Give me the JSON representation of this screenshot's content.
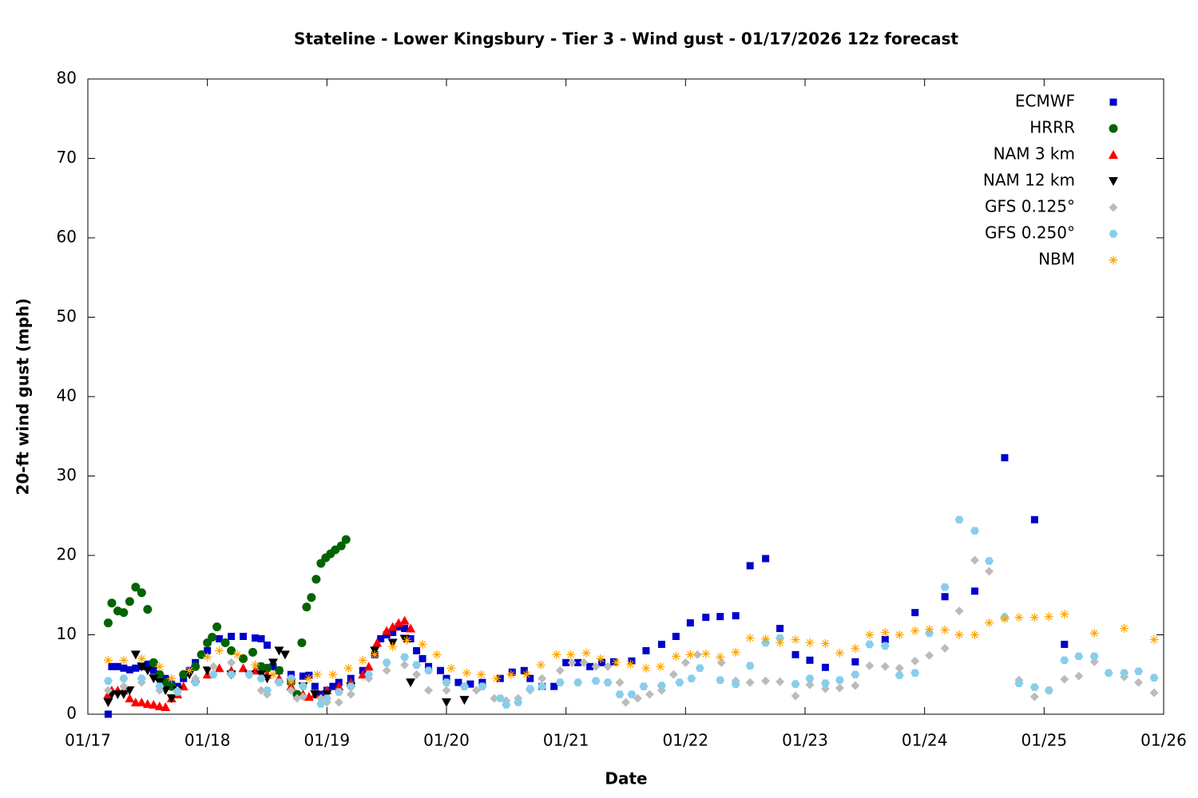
{
  "chart_data": {
    "type": "scatter",
    "title": "Stateline - Lower Kingsbury - Tier 3 - Wind gust - 01/17/2026 12z forecast",
    "xlabel": "Date",
    "ylabel": "20-ft wind gust (mph)",
    "xlim": [
      0,
      9
    ],
    "ylim": [
      0,
      80
    ],
    "xticks": [
      {
        "value": 0,
        "label": "01/17"
      },
      {
        "value": 1,
        "label": "01/18"
      },
      {
        "value": 2,
        "label": "01/19"
      },
      {
        "value": 3,
        "label": "01/20"
      },
      {
        "value": 4,
        "label": "01/21"
      },
      {
        "value": 5,
        "label": "01/22"
      },
      {
        "value": 6,
        "label": "01/23"
      },
      {
        "value": 7,
        "label": "01/24"
      },
      {
        "value": 8,
        "label": "01/25"
      },
      {
        "value": 9,
        "label": "01/26"
      }
    ],
    "yticks": [
      0,
      10,
      20,
      30,
      40,
      50,
      60,
      70,
      80
    ],
    "legend": "top-right",
    "series": [
      {
        "name": "ECMWF",
        "color": "#0000cc",
        "marker": "square",
        "x": [
          0.17,
          0.2,
          0.25,
          0.3,
          0.35,
          0.4,
          0.45,
          0.5,
          0.55,
          0.6,
          0.65,
          0.7,
          0.75,
          0.8,
          0.85,
          0.9,
          1.0,
          1.1,
          1.2,
          1.3,
          1.4,
          1.45,
          1.5,
          1.55,
          1.6,
          1.7,
          1.8,
          1.85,
          1.9,
          1.95,
          2.0,
          2.05,
          2.1,
          2.2,
          2.3,
          2.4,
          2.45,
          2.5,
          2.55,
          2.6,
          2.65,
          2.7,
          2.75,
          2.8,
          2.85,
          2.95,
          3.0,
          3.1,
          3.2,
          3.3,
          3.45,
          3.55,
          3.65,
          3.7,
          3.8,
          3.9,
          4.0,
          4.1,
          4.2,
          4.3,
          4.4,
          4.55,
          4.67,
          4.8,
          4.92,
          5.04,
          5.17,
          5.29,
          5.42,
          5.54,
          5.67,
          5.79,
          5.92,
          6.04,
          6.17,
          6.42,
          6.67,
          6.92,
          7.17,
          7.42,
          7.67,
          7.92,
          8.17
        ],
        "values": [
          0,
          6,
          6,
          5.8,
          5.6,
          5.8,
          6,
          6.3,
          5.5,
          4.8,
          4.5,
          3.8,
          3.5,
          4.5,
          5.5,
          6.5,
          8,
          9.5,
          9.8,
          9.8,
          9.6,
          9.5,
          8.7,
          6,
          5.5,
          5,
          4.8,
          4.9,
          3.5,
          2.5,
          3,
          3.5,
          4,
          4.5,
          5.5,
          7.5,
          9.5,
          10,
          10.3,
          11,
          10.8,
          9.5,
          8,
          7,
          6,
          5.5,
          4.5,
          4,
          3.8,
          4,
          4.5,
          5.3,
          5.5,
          4.5,
          3.5,
          3.5,
          6.5,
          6.5,
          6,
          6.5,
          6.6,
          6.7,
          8,
          8.8,
          9.8,
          11.5,
          12.2,
          12.3,
          12.4,
          18.7,
          19.6,
          10.8,
          7.5,
          6.8,
          5.9,
          6.6,
          9.4,
          12.8,
          14.8,
          15.5,
          32.3,
          24.5,
          8.8
        ]
      },
      {
        "name": "HRRR",
        "color": "#006400",
        "marker": "circle",
        "x": [
          0.17,
          0.2,
          0.25,
          0.3,
          0.35,
          0.4,
          0.45,
          0.5,
          0.55,
          0.6,
          0.65,
          0.7,
          0.8,
          0.9,
          0.95,
          1.0,
          1.04,
          1.08,
          1.15,
          1.2,
          1.3,
          1.38,
          1.45,
          1.5,
          1.6,
          1.7,
          1.75,
          1.79,
          1.83,
          1.87,
          1.91,
          1.95,
          1.99,
          2.03,
          2.07,
          2.12,
          2.16
        ],
        "values": [
          11.5,
          14,
          13,
          12.8,
          14.2,
          16,
          15.3,
          13.2,
          6.5,
          5,
          4,
          3.5,
          5,
          6,
          7.5,
          9,
          9.7,
          11,
          9,
          8,
          7,
          7.8,
          6,
          5.8,
          5.5,
          4,
          2.5,
          9,
          13.5,
          14.7,
          17,
          19,
          19.7,
          20.2,
          20.7,
          21.2,
          22
        ]
      },
      {
        "name": "NAM 3 km",
        "color": "#ff0000",
        "marker": "triangle-up",
        "x": [
          0.17,
          0.2,
          0.25,
          0.3,
          0.35,
          0.4,
          0.45,
          0.5,
          0.55,
          0.6,
          0.65,
          0.7,
          0.75,
          0.8,
          0.9,
          1.0,
          1.1,
          1.2,
          1.3,
          1.4,
          1.5,
          1.6,
          1.7,
          1.8,
          1.85,
          1.9,
          2.0,
          2.1,
          2.2,
          2.3,
          2.35,
          2.42,
          2.5,
          2.55,
          2.6,
          2.65,
          2.7
        ],
        "values": [
          2.5,
          3,
          3,
          3,
          2,
          1.5,
          1.5,
          1.3,
          1.2,
          1,
          0.9,
          2,
          2.5,
          3.5,
          4.5,
          5,
          5.8,
          5.5,
          5.8,
          5.5,
          5,
          4.5,
          3.5,
          2.5,
          2.2,
          2.5,
          3,
          3.5,
          4,
          5,
          6,
          9,
          10.5,
          11,
          11.5,
          11.8,
          10.8
        ]
      },
      {
        "name": "NAM 12 km",
        "color": "#000000",
        "marker": "triangle-down",
        "x": [
          0.17,
          0.2,
          0.25,
          0.3,
          0.35,
          0.4,
          0.45,
          0.5,
          0.55,
          0.6,
          0.65,
          0.7,
          0.75,
          0.85,
          1.0,
          1.2,
          1.35,
          1.45,
          1.5,
          1.55,
          1.6,
          1.65,
          1.7,
          1.8,
          1.9,
          2.0,
          2.2,
          2.4,
          2.55,
          2.65,
          2.7,
          3.0,
          3.15
        ],
        "values": [
          1.5,
          2.5,
          2.5,
          2.5,
          3,
          7.5,
          6,
          5.5,
          4.5,
          4,
          3,
          2,
          3,
          5,
          5.5,
          5,
          5,
          5,
          4.5,
          6.5,
          8,
          7.5,
          4,
          3.5,
          2.5,
          2.5,
          3.5,
          8,
          9,
          9.5,
          4,
          1.5,
          1.8
        ]
      },
      {
        "name": "GFS 0.125°",
        "color": "#bbbbbb",
        "marker": "diamond",
        "x": [
          0.17,
          0.3,
          0.45,
          0.6,
          0.75,
          0.9,
          1.05,
          1.2,
          1.35,
          1.45,
          1.5,
          1.6,
          1.7,
          1.75,
          1.8,
          1.95,
          2.0,
          2.1,
          2.2,
          2.35,
          2.5,
          2.65,
          2.75,
          2.85,
          3.0,
          3.15,
          3.25,
          3.4,
          3.5,
          3.6,
          3.7,
          3.8,
          3.95,
          4.05,
          4.15,
          4.25,
          4.35,
          4.45,
          4.5,
          4.6,
          4.7,
          4.8,
          4.9,
          5.0,
          5.1,
          5.3,
          5.42,
          5.54,
          5.67,
          5.79,
          5.92,
          6.04,
          6.17,
          6.29,
          6.42,
          6.54,
          6.67,
          6.79,
          6.92,
          7.04,
          7.17,
          7.29,
          7.42,
          7.54,
          7.67,
          7.79,
          7.92,
          8.04,
          8.17,
          8.29,
          8.42,
          8.54,
          8.67,
          8.79,
          8.92
        ],
        "values": [
          3,
          3.5,
          4,
          3,
          3,
          4.5,
          6,
          6.5,
          5,
          3,
          2.5,
          4,
          3,
          2,
          2.2,
          2,
          1.5,
          1.5,
          2.5,
          4.5,
          5.5,
          6.2,
          5,
          3,
          3,
          3.5,
          3,
          2,
          1.7,
          2,
          3,
          4.5,
          5.5,
          6.5,
          6.5,
          6,
          6,
          4,
          1.5,
          2,
          2.5,
          3,
          5,
          6.5,
          7.5,
          6.5,
          4.2,
          4,
          4.2,
          4.1,
          2.3,
          3.7,
          3.2,
          3.3,
          3.6,
          6.1,
          6,
          5.8,
          6.7,
          7.4,
          8.3,
          13,
          19.4,
          18,
          12.3,
          4.3,
          2.2,
          3,
          4.4,
          4.8,
          6.6,
          5.2,
          4.7,
          4,
          2.7
        ]
      },
      {
        "name": "GFS 0.250°",
        "color": "#87ceeb",
        "marker": "hexagon",
        "x": [
          0.17,
          0.3,
          0.45,
          0.6,
          0.75,
          0.9,
          1.05,
          1.2,
          1.35,
          1.45,
          1.5,
          1.6,
          1.7,
          1.8,
          1.95,
          2.0,
          2.1,
          2.2,
          2.35,
          2.5,
          2.65,
          2.75,
          2.85,
          3.0,
          3.15,
          3.3,
          3.45,
          3.5,
          3.6,
          3.7,
          3.8,
          3.95,
          4.1,
          4.25,
          4.35,
          4.45,
          4.55,
          4.65,
          4.8,
          4.95,
          5.05,
          5.12,
          5.29,
          5.42,
          5.54,
          5.67,
          5.79,
          5.92,
          6.04,
          6.17,
          6.29,
          6.42,
          6.54,
          6.67,
          6.79,
          6.92,
          7.04,
          7.17,
          7.29,
          7.42,
          7.54,
          7.67,
          7.79,
          7.92,
          8.04,
          8.17,
          8.29,
          8.42,
          8.54,
          8.67,
          8.79,
          8.92
        ],
        "values": [
          4.2,
          4.5,
          4.5,
          3.5,
          2.8,
          4,
          5,
          5,
          5,
          4.5,
          3,
          4,
          4.5,
          3.5,
          1.3,
          2,
          2.8,
          3.5,
          5,
          6.5,
          7.2,
          6.2,
          5.5,
          4,
          3.5,
          3.5,
          2,
          1.2,
          1.5,
          3.2,
          3.5,
          4,
          4,
          4.2,
          4,
          2.5,
          2.5,
          3.5,
          3.6,
          4,
          4.5,
          5.8,
          4.3,
          3.8,
          6.1,
          9,
          9.6,
          3.8,
          4.5,
          3.9,
          4.3,
          5,
          8.8,
          8.6,
          4.9,
          5.2,
          10.2,
          16,
          24.5,
          23.1,
          19.3,
          12.2,
          3.9,
          3.4,
          3,
          6.8,
          7.3,
          7.3,
          5.2,
          5.2,
          5.4,
          4.6
        ]
      },
      {
        "name": "NBM",
        "color": "#ffa500",
        "marker": "asterisk",
        "x": [
          0.17,
          0.3,
          0.45,
          0.6,
          0.7,
          0.85,
          1.0,
          1.1,
          1.25,
          1.4,
          1.55,
          1.7,
          1.85,
          1.92,
          2.05,
          2.18,
          2.3,
          2.4,
          2.55,
          2.67,
          2.8,
          2.92,
          3.04,
          3.17,
          3.29,
          3.42,
          3.54,
          3.67,
          3.79,
          3.92,
          4.04,
          4.17,
          4.29,
          4.42,
          4.54,
          4.67,
          4.79,
          4.92,
          5.04,
          5.17,
          5.29,
          5.42,
          5.54,
          5.67,
          5.79,
          5.92,
          6.04,
          6.17,
          6.29,
          6.42,
          6.54,
          6.67,
          6.79,
          6.92,
          7.04,
          7.17,
          7.29,
          7.42,
          7.54,
          7.67,
          7.79,
          7.92,
          8.04,
          8.17,
          8.42,
          8.67,
          8.92
        ],
        "values": [
          6.8,
          6.8,
          7,
          6,
          4.5,
          5.5,
          7.2,
          8,
          7.5,
          6.2,
          5,
          4,
          4.5,
          5,
          5,
          5.8,
          6.8,
          7.5,
          8.5,
          9.3,
          8.8,
          7.5,
          5.8,
          5.2,
          5,
          4.5,
          5,
          5,
          6.2,
          7.5,
          7.5,
          7.7,
          7,
          6.5,
          6.3,
          5.8,
          6,
          7.3,
          7.5,
          7.6,
          7.2,
          7.8,
          9.6,
          9.5,
          9,
          9.4,
          9,
          8.9,
          7.7,
          8.3,
          10,
          10.3,
          10,
          10.5,
          10.7,
          10.6,
          10,
          10,
          11.5,
          12,
          12.2,
          12.2,
          12.3,
          12.6,
          10.2,
          10.8,
          9.4
        ]
      }
    ]
  }
}
